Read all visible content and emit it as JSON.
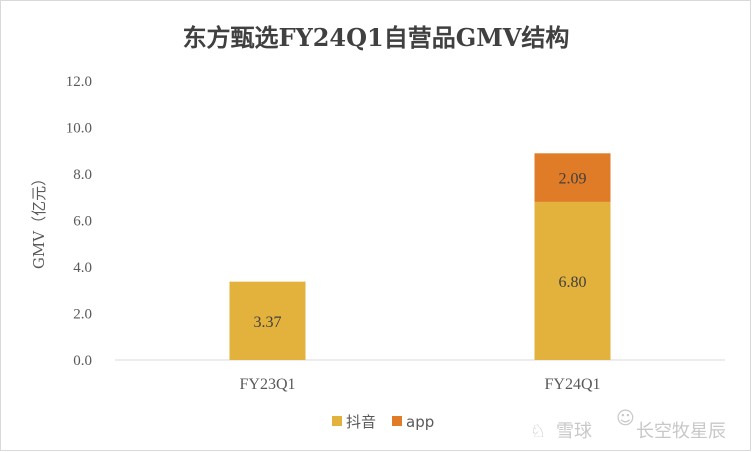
{
  "chart_data": {
    "type": "bar",
    "stacked": true,
    "title": "东方甄选FY24Q1自营品GMV结构",
    "ylabel": "GMV（亿元）",
    "xlabel": "",
    "categories": [
      "FY23Q1",
      "FY24Q1"
    ],
    "series": [
      {
        "name": "抖音",
        "values": [
          3.37,
          6.8
        ],
        "color": "#e3b23c"
      },
      {
        "name": "app",
        "values": [
          0,
          2.09
        ],
        "color": "#e07b28"
      }
    ],
    "data_labels": [
      [
        "3.37",
        "6.80"
      ],
      [
        "",
        "2.09"
      ]
    ],
    "ylim": [
      0,
      12
    ],
    "yticks": [
      "0.0",
      "2.0",
      "4.0",
      "6.0",
      "8.0",
      "10.0",
      "12.0"
    ],
    "grid": false,
    "legend_position": "bottom"
  },
  "watermark": {
    "text1": "雪球",
    "text2": "长空牧星辰"
  }
}
